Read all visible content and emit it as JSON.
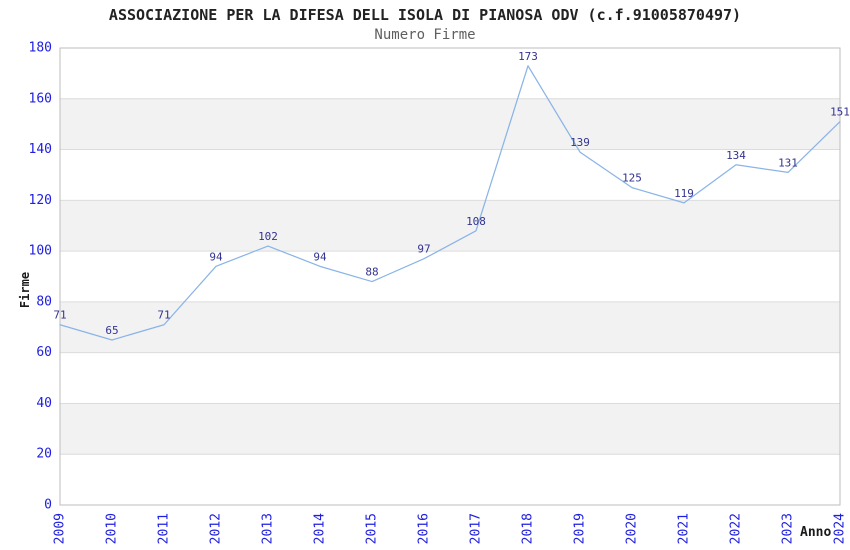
{
  "chart_data": {
    "type": "line",
    "title": "ASSOCIAZIONE PER LA DIFESA DELL ISOLA DI PIANOSA ODV (c.f.91005870497)",
    "subtitle": "Numero Firme",
    "xlabel": "Anno",
    "ylabel": "Firme",
    "categories": [
      "2009",
      "2010",
      "2011",
      "2012",
      "2013",
      "2014",
      "2015",
      "2016",
      "2017",
      "2018",
      "2019",
      "2020",
      "2021",
      "2022",
      "2023",
      "2024"
    ],
    "values": [
      71,
      65,
      71,
      94,
      102,
      94,
      88,
      97,
      108,
      173,
      139,
      125,
      119,
      134,
      131,
      151
    ],
    "ylim": [
      0,
      180
    ],
    "ytick_step": 20,
    "yticks": [
      0,
      20,
      40,
      60,
      80,
      100,
      120,
      140,
      160,
      180
    ],
    "xtick_rotation": -90,
    "grid": "horizontal",
    "banding": "alternating-gray",
    "legend": "none",
    "markers": "none",
    "data_labels_shown": true,
    "colors": {
      "line": "#8ab4e8",
      "tick_label": "#2020e0",
      "data_label": "#333390",
      "band_fill": "#f2f2f2",
      "gridline": "#dcdcdc",
      "plot_border": "#bdbdbd",
      "title": "#222222",
      "subtitle": "#5f5f5f",
      "axis_title": "#1a1a1a",
      "background": "#ffffff"
    }
  }
}
